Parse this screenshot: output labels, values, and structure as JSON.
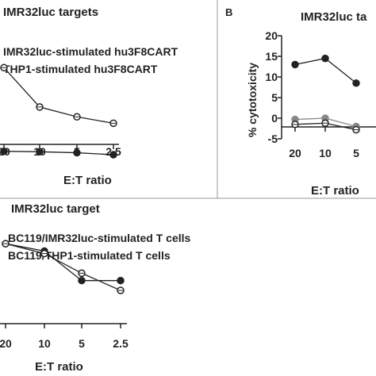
{
  "chart_data": [
    {
      "type": "line",
      "title": "IMR32luc targets",
      "xlabel": "E:T ratio",
      "ylabel": "",
      "categories": [
        "20",
        "10",
        "5",
        "2.5"
      ],
      "ylim": [
        -5,
        20
      ],
      "series": [
        {
          "name": "IMR32luc-stimulated hu3F8CART",
          "marker": "open",
          "values": [
            13.5,
            5.5,
            3.5,
            2.2
          ]
        },
        {
          "name": "THP1-stimulated hu3F8CART",
          "marker": "filled",
          "values": [
            -3.5,
            -3.6,
            -3.8,
            -4.2
          ]
        }
      ]
    },
    {
      "type": "line",
      "panel_label": "B",
      "title": "IMR32luc ta",
      "xlabel": "E:T ratio",
      "ylabel": "% cytotoxicity",
      "categories": [
        "20",
        "10",
        "5"
      ],
      "yticks": [
        "20",
        "15",
        "10",
        "5",
        "0",
        "-5"
      ],
      "ylim": [
        -5,
        20
      ],
      "series": [
        {
          "name": "",
          "marker": "filled",
          "values": [
            13,
            14.5,
            8.5
          ]
        },
        {
          "name": "",
          "marker": "grey",
          "values": [
            -0.3,
            0,
            -2
          ]
        },
        {
          "name": "",
          "marker": "open",
          "values": [
            -1.5,
            -1.2,
            -2.8
          ]
        }
      ]
    },
    {
      "type": "line",
      "title": "IMR32luc target",
      "xlabel": "E:T ratio",
      "ylabel": "",
      "categories": [
        "20",
        "10",
        "5",
        "2.5"
      ],
      "ylim": [
        -5,
        20
      ],
      "series": [
        {
          "name": "BC119/IMR32luc-stimulated T cells",
          "marker": "filled",
          "values": [
            14,
            12.5,
            6.5,
            6.5
          ]
        },
        {
          "name": "BC119/THP1-stimulated T cells",
          "marker": "open",
          "values": [
            14,
            12,
            8,
            4.5
          ]
        }
      ]
    }
  ]
}
